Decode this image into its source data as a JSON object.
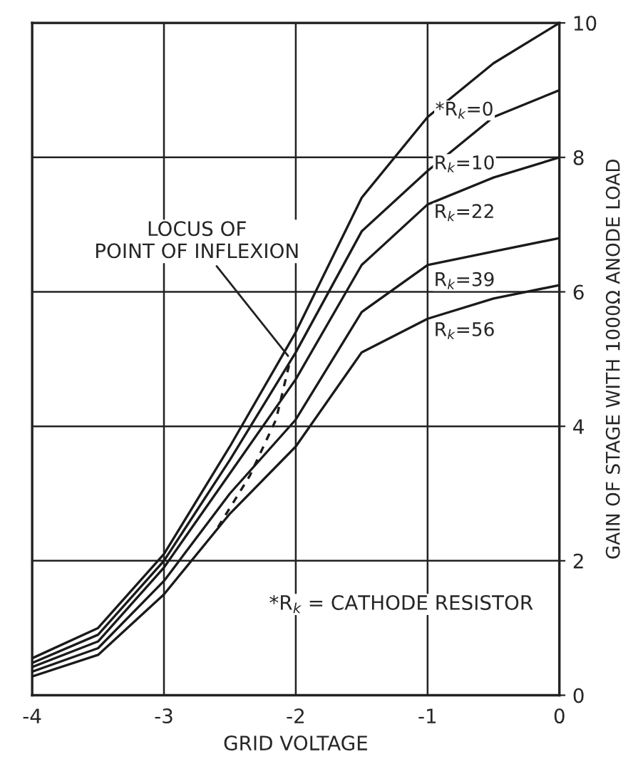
{
  "chart_data": {
    "type": "line",
    "xlabel": "GRID VOLTAGE",
    "ylabel": "GAIN OF STAGE WITH 1000Ω ANODE LOAD",
    "x": [
      -4,
      -3.5,
      -3,
      -2.5,
      -2,
      -1.5,
      -1,
      -0.5,
      0
    ],
    "series": [
      {
        "name": "*R$_{k}$=0",
        "color": "#1a1a1a",
        "values": [
          0.55,
          1.0,
          2.1,
          3.7,
          5.4,
          7.4,
          8.6,
          9.4,
          10
        ]
      },
      {
        "name": "R$_{k}$=10",
        "color": "#1a1a1a",
        "values": [
          0.48,
          0.9,
          2.0,
          3.5,
          5.1,
          6.9,
          7.8,
          8.6,
          9.0
        ]
      },
      {
        "name": "R$_{k}$=22",
        "color": "#1a1a1a",
        "values": [
          0.42,
          0.8,
          1.9,
          3.3,
          4.7,
          6.4,
          7.3,
          7.7,
          8.0
        ]
      },
      {
        "name": "R$_{k}$=39",
        "color": "#1a1a1a",
        "values": [
          0.35,
          0.7,
          1.7,
          3.0,
          4.1,
          5.7,
          6.4,
          6.6,
          6.8
        ]
      },
      {
        "name": "R$_{k}$=56",
        "color": "#1a1a1a",
        "values": [
          0.28,
          0.6,
          1.5,
          2.7,
          3.7,
          5.1,
          5.6,
          5.9,
          6.1
        ]
      },
      {
        "type": "line",
        "line_style": "dashed",
        "color": "#1a1a1a",
        "x": [
          -2.59,
          -2.35,
          -2.15,
          -2.04
        ],
        "values": [
          2.5,
          3.26,
          4.1,
          5.0
        ]
      }
    ],
    "xlim": [
      -4,
      0
    ],
    "ylim": [
      0,
      10
    ],
    "xticks": [
      -4,
      -3,
      -2,
      -1,
      0
    ],
    "yticks": [
      0,
      2,
      4,
      6,
      8,
      10
    ],
    "grid": true,
    "legend": false,
    "annotations": [
      {
        "text": "LOCUS OF\nPOINT OF INFLEXION",
        "x": -2.04,
        "y": 5.0
      },
      "*R$_{k}$ = CATHODE RESISTOR"
    ]
  }
}
